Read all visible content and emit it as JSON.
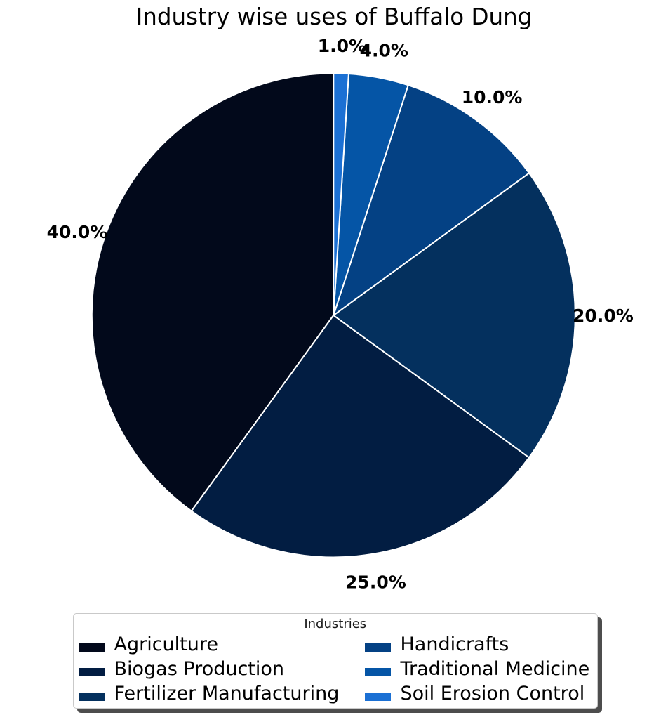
{
  "chart_data": {
    "type": "pie",
    "title": "Industry wise uses of Buffalo Dung",
    "categories": [
      "Agriculture",
      "Biogas Production",
      "Fertilizer Manufacturing",
      "Handicrafts",
      "Traditional Medicine",
      "Soil Erosion Control"
    ],
    "values": [
      40,
      25,
      20,
      10,
      4,
      1
    ],
    "pct_labels": [
      "40.0%",
      "25.0%",
      "20.0%",
      "10.0%",
      "4.0%",
      "1.0%"
    ],
    "colors": [
      "#02091b",
      "#021d42",
      "#04305e",
      "#044184",
      "#0555a6",
      "#1b70d4"
    ],
    "wedge_edge_color": "#ffffff",
    "startangle": 90,
    "counterclock": true,
    "pctdistance": 1.115,
    "legend": {
      "title": "Industries",
      "columns": 2,
      "position": "lower center",
      "shadow": true,
      "column_major_order": [
        [
          0,
          1,
          2
        ],
        [
          3,
          4,
          5
        ]
      ]
    }
  }
}
